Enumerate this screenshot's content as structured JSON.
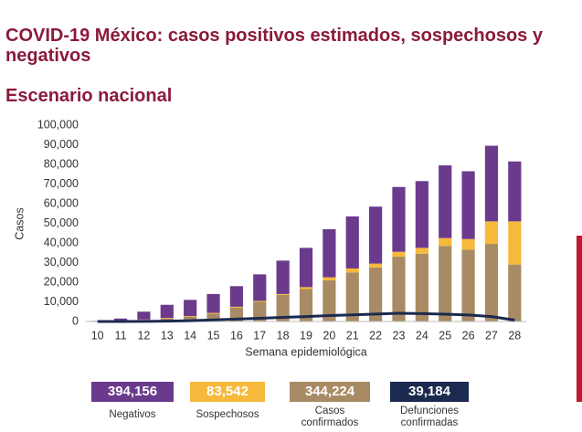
{
  "chart_data": {
    "type": "bar",
    "title": "COVID-19 México: casos positivos estimados, sospechosos y negativos",
    "subtitle": "Escenario nacional",
    "y_label": "Casos",
    "x_label": "Semana epidemiológica",
    "stacked": true,
    "grid": false,
    "categories": [
      "10",
      "11",
      "12",
      "13",
      "14",
      "15",
      "16",
      "17",
      "18",
      "19",
      "20",
      "21",
      "22",
      "23",
      "24",
      "25",
      "26",
      "27",
      "28"
    ],
    "ylim": [
      0,
      100000
    ],
    "yticks": [
      0,
      {
        "value": 10000,
        "label": "10,000"
      },
      {
        "value": 20000,
        "label": "20,000"
      },
      {
        "value": 30000,
        "label": "30,000"
      },
      {
        "value": 40000,
        "label": "40,000"
      },
      {
        "value": 50000,
        "label": "50,000"
      },
      {
        "value": 60000,
        "label": "60,000"
      },
      {
        "value": 70000,
        "label": "70,000"
      },
      {
        "value": 80000,
        "label": "80,000"
      },
      {
        "value": 90000,
        "label": "90,000"
      },
      {
        "value": 100000,
        "label": "100,000"
      }
    ],
    "series": [
      {
        "name": "Negativos",
        "type": "bar",
        "color": "#6b3a8c",
        "total": "394,156",
        "values": [
          200,
          1200,
          4000,
          6700,
          8200,
          9600,
          10500,
          13500,
          17000,
          20000,
          24500,
          26500,
          29000,
          33000,
          34000,
          37000,
          34500,
          38500,
          30500
        ]
      },
      {
        "name": "Sospechosos",
        "type": "bar",
        "color": "#f6b93b",
        "total": "83,542",
        "values": [
          0,
          0,
          200,
          300,
          300,
          400,
          500,
          500,
          500,
          1000,
          1500,
          2000,
          2000,
          2500,
          3000,
          4000,
          5500,
          11500,
          22000
        ]
      },
      {
        "name": "Casos confirmados",
        "type": "bar",
        "color": "#a88a64",
        "total": "344,224",
        "values": [
          100,
          300,
          800,
          1500,
          2500,
          4000,
          7000,
          10000,
          13500,
          16500,
          21000,
          25000,
          27500,
          33000,
          34500,
          38500,
          36500,
          39500,
          29000
        ]
      },
      {
        "name": "Defunciones confirmadas",
        "type": "line",
        "color": "#1b2a4e",
        "total": "39,184",
        "values": [
          0,
          20,
          50,
          150,
          400,
          800,
          1200,
          1600,
          2100,
          2500,
          3000,
          3400,
          3800,
          4200,
          4000,
          3700,
          3300,
          2500,
          700
        ]
      }
    ]
  }
}
